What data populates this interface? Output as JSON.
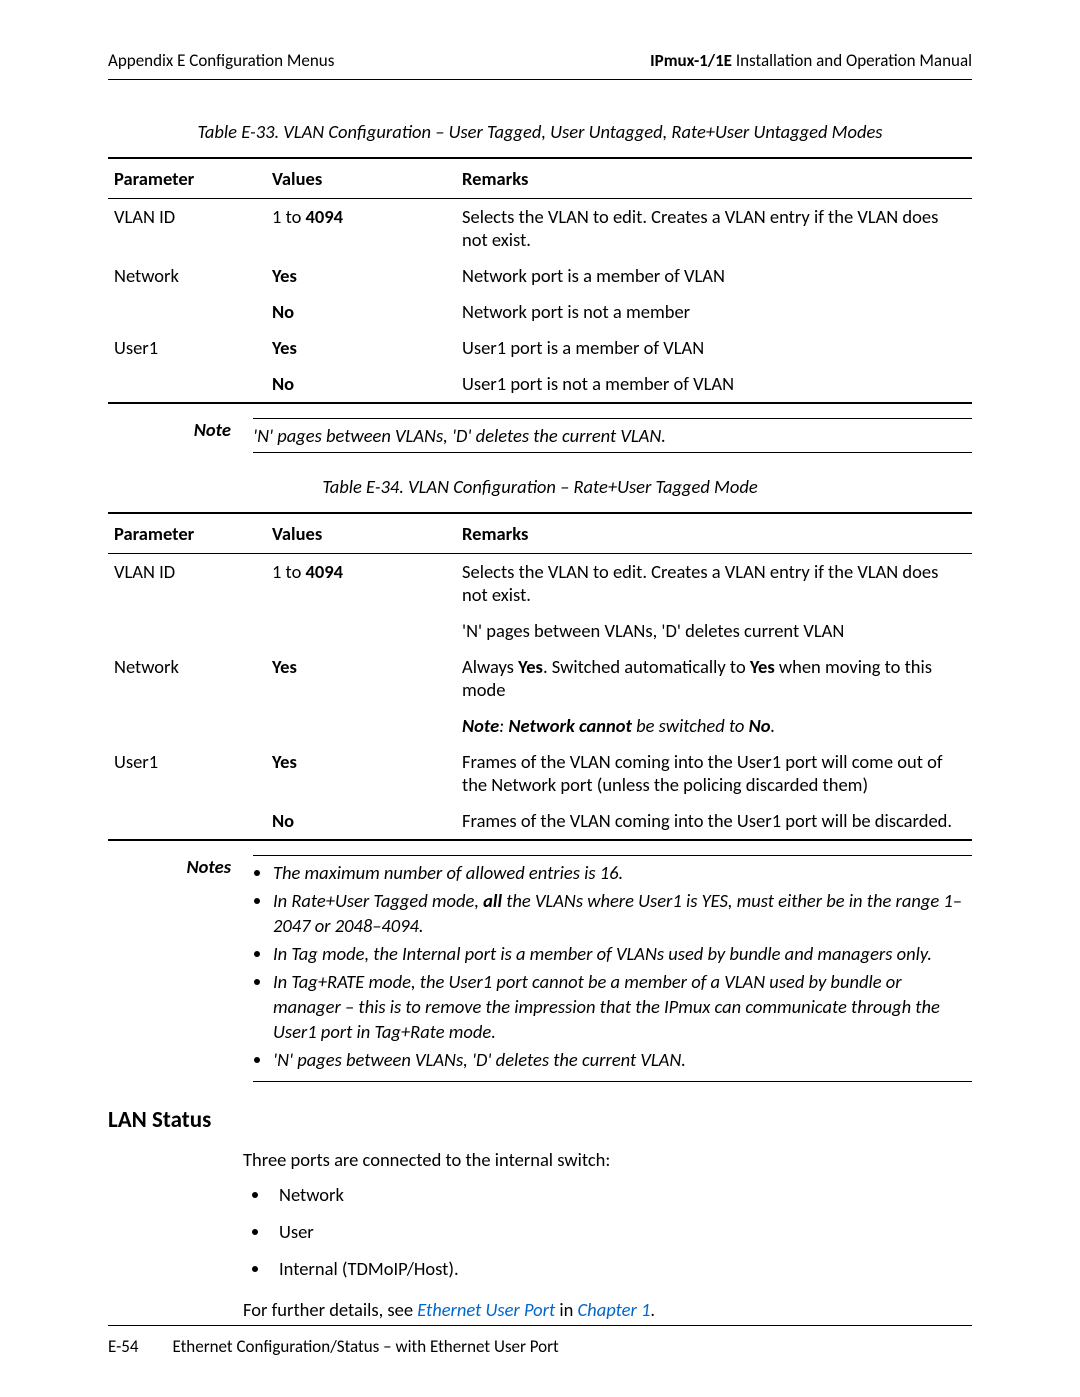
{
  "header": {
    "left": "Appendix E  Configuration Menus",
    "right_bold": "IPmux-1/1E",
    "right_rest": " Installation and Operation Manual"
  },
  "table33": {
    "caption": "Table E-33.  VLAN Configuration – User Tagged, User Untagged, Rate+User Untagged Modes",
    "headers": [
      "Parameter",
      "Values",
      "Remarks"
    ],
    "rows": [
      {
        "param": "VLAN ID",
        "value_pre": "1",
        "value_mid": " to ",
        "value_bold": "4094",
        "remark": "Selects the VLAN to edit. Creates a VLAN entry if the VLAN does not exist."
      },
      {
        "param": "Network",
        "value_bold": "Yes",
        "remark": "Network port is a member of VLAN"
      },
      {
        "param": "",
        "value_bold": "No",
        "remark": "Network port is not a member"
      },
      {
        "param": "User1",
        "value_bold": "Yes",
        "remark": "User1 port is a member of VLAN"
      },
      {
        "param": "",
        "value_bold": "No",
        "remark": "User1 port is not a member of VLAN"
      }
    ]
  },
  "note1": {
    "label": "Note",
    "text": "'N' pages between VLANs, 'D' deletes the current VLAN."
  },
  "table34": {
    "caption": "Table E-34.  VLAN Configuration – Rate+User Tagged Mode",
    "headers": [
      "Parameter",
      "Values",
      "Remarks"
    ],
    "rows": [
      {
        "param": "VLAN ID",
        "value_html": "1 to <b>4094</b>",
        "remark_html": "Selects the VLAN to edit. Creates a VLAN entry if the VLAN does not exist."
      },
      {
        "param": "",
        "value_html": "",
        "remark_html": "'N' pages between VLANs, 'D' deletes current VLAN"
      },
      {
        "param": "Network",
        "value_html": "<b>Yes</b>",
        "remark_html": "Always <b>Yes</b>. Switched automatically to <b>Yes</b> when moving to this mode"
      },
      {
        "param": "",
        "value_html": "",
        "remark_html": "<i><b>Note</b>: <b>Network cannot</b> be switched to <b>No</b>.</i>"
      },
      {
        "param": "User1",
        "value_html": "<b>Yes</b>",
        "remark_html": "Frames of the VLAN coming into the User1 port will come out of the Network port (unless the policing discarded them)"
      },
      {
        "param": "",
        "value_html": "<b>No</b>",
        "remark_html": "Frames of the VLAN coming into the User1 port will be discarded."
      }
    ]
  },
  "notes2": {
    "label": "Notes",
    "items": [
      "The maximum number of allowed entries is 16.",
      "In Rate+User Tagged mode, <b>all</b> the VLANs where User1 is YES, must either be in the range 1–2047 or 2048–4094.",
      "In Tag mode, the Internal port is a member of VLANs used by bundle and managers only.",
      "In Tag+RATE mode, the User1 port cannot be a member of a VLAN used by bundle or manager – this is to remove the impression that the IPmux can communicate through the User1 port in Tag+Rate mode.",
      "'N' pages between VLANs, 'D' deletes the current VLAN."
    ]
  },
  "section": {
    "title": "LAN Status",
    "intro": "Three ports are connected to the internal switch:",
    "items": [
      "Network",
      "User",
      "Internal (TDMoIP/Host)."
    ],
    "outro_pre": "For further details, see ",
    "link1": "Ethernet User Port",
    "outro_mid": " in ",
    "link2": "Chapter 1",
    "outro_post": "."
  },
  "footer": {
    "page": "E-54",
    "text": "Ethernet Configuration/Status – with Ethernet User Port"
  }
}
